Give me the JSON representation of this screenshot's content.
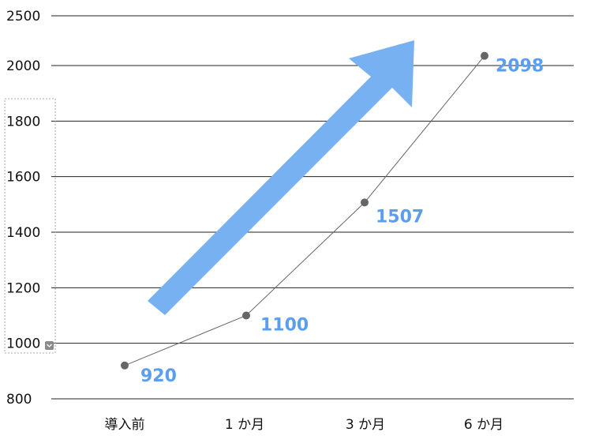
{
  "chart_data": {
    "type": "line",
    "categories": [
      "導入前",
      "1 か月",
      "3 か月",
      "6 か月"
    ],
    "values": [
      920,
      1100,
      1507,
      2098
    ],
    "data_labels": [
      "920",
      "1100",
      "1507",
      "2098"
    ],
    "yticks": [
      800,
      1000,
      1200,
      1400,
      1600,
      1800,
      2000,
      2500
    ],
    "ytick_labels": [
      "800",
      "1000",
      "1200",
      "1400",
      "1600",
      "1800",
      "2000",
      "2500"
    ],
    "ylim": [
      800,
      2500
    ],
    "y_axis_break": true,
    "grid": true,
    "line_color": "#666666",
    "marker_color": "#666666",
    "label_color": "#5b9ef0",
    "arrow_color": "#77b1f2",
    "annotation": "upward-trend-arrow"
  }
}
